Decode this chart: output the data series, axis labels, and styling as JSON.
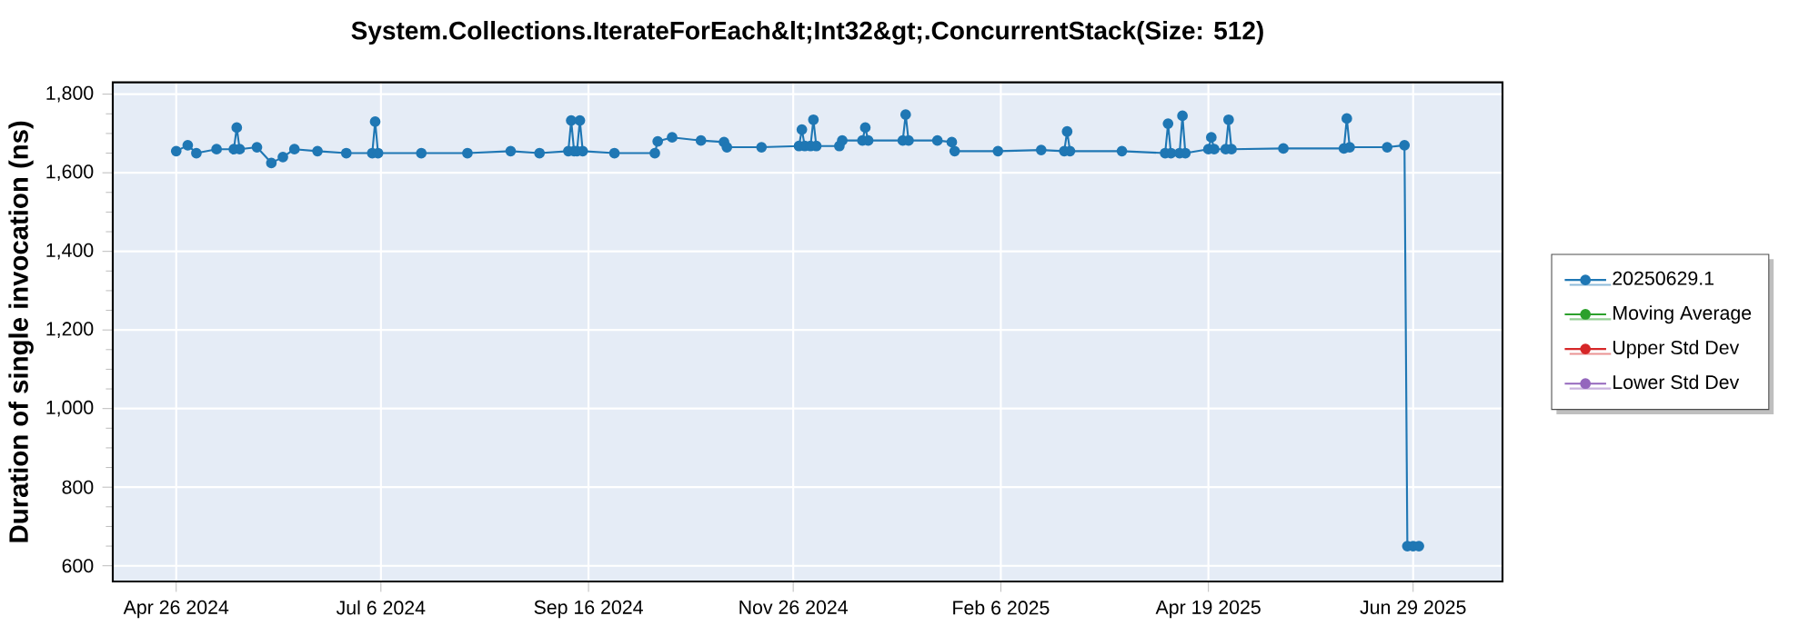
{
  "chart_data": {
    "type": "line",
    "title": "System.Collections.IterateForEach&lt;Int32&gt;.ConcurrentStack(Size: 512)",
    "ylabel": "Duration of single invocation (ns)",
    "xlim": [
      "2024-04-04",
      "2025-07-30"
    ],
    "ylim": [
      560,
      1830
    ],
    "xticks": [
      {
        "value": "2024-04-26",
        "label": "Apr 26 2024"
      },
      {
        "value": "2024-07-06",
        "label": "Jul 6 2024"
      },
      {
        "value": "2024-09-16",
        "label": "Sep 16 2024"
      },
      {
        "value": "2024-11-26",
        "label": "Nov 26 2024"
      },
      {
        "value": "2025-02-06",
        "label": "Feb 6 2025"
      },
      {
        "value": "2025-04-19",
        "label": "Apr 19 2025"
      },
      {
        "value": "2025-06-29",
        "label": "Jun 29 2025"
      }
    ],
    "yticks": [
      {
        "value": 600,
        "label": "600"
      },
      {
        "value": 800,
        "label": "800"
      },
      {
        "value": 1000,
        "label": "1,000"
      },
      {
        "value": 1200,
        "label": "1,200"
      },
      {
        "value": 1400,
        "label": "1,400"
      },
      {
        "value": 1600,
        "label": "1,600"
      },
      {
        "value": 1800,
        "label": "1,800"
      }
    ],
    "grid": true,
    "legend": "right",
    "marker": "circle",
    "series": [
      {
        "name": "20250629.1",
        "color": "#1f77b4",
        "x": [
          "2024-04-26",
          "2024-04-30",
          "2024-05-03",
          "2024-05-10",
          "2024-05-16",
          "2024-05-17",
          "2024-05-18",
          "2024-05-24",
          "2024-05-29",
          "2024-06-02",
          "2024-06-06",
          "2024-06-14",
          "2024-06-24",
          "2024-07-03",
          "2024-07-04",
          "2024-07-05",
          "2024-07-20",
          "2024-08-05",
          "2024-08-20",
          "2024-08-30",
          "2024-09-09",
          "2024-09-10",
          "2024-09-11",
          "2024-09-12",
          "2024-09-13",
          "2024-09-14",
          "2024-09-25",
          "2024-10-09",
          "2024-10-10",
          "2024-10-15",
          "2024-10-25",
          "2024-11-02",
          "2024-11-03",
          "2024-11-15",
          "2024-11-28",
          "2024-11-29",
          "2024-11-30",
          "2024-12-02",
          "2024-12-03",
          "2024-12-04",
          "2024-12-12",
          "2024-12-13",
          "2024-12-20",
          "2024-12-21",
          "2024-12-22",
          "2025-01-03",
          "2025-01-04",
          "2025-01-05",
          "2025-01-15",
          "2025-01-20",
          "2025-01-21",
          "2025-02-05",
          "2025-02-20",
          "2025-02-28",
          "2025-03-01",
          "2025-03-02",
          "2025-03-20",
          "2025-04-04",
          "2025-04-05",
          "2025-04-06",
          "2025-04-09",
          "2025-04-10",
          "2025-04-11",
          "2025-04-19",
          "2025-04-20",
          "2025-04-21",
          "2025-04-25",
          "2025-04-26",
          "2025-04-27",
          "2025-05-15",
          "2025-06-05",
          "2025-06-06",
          "2025-06-07",
          "2025-06-20",
          "2025-06-26",
          "2025-06-27",
          "2025-06-29",
          "2025-07-01"
        ],
        "values": [
          1655,
          1670,
          1650,
          1660,
          1660,
          1715,
          1660,
          1665,
          1625,
          1640,
          1660,
          1655,
          1650,
          1650,
          1730,
          1650,
          1650,
          1650,
          1655,
          1650,
          1655,
          1733,
          1655,
          1655,
          1733,
          1655,
          1650,
          1650,
          1680,
          1690,
          1682,
          1678,
          1665,
          1665,
          1668,
          1710,
          1668,
          1668,
          1735,
          1668,
          1668,
          1682,
          1682,
          1715,
          1682,
          1682,
          1748,
          1682,
          1682,
          1678,
          1655,
          1655,
          1658,
          1655,
          1705,
          1655,
          1655,
          1650,
          1725,
          1650,
          1650,
          1745,
          1650,
          1660,
          1690,
          1660,
          1660,
          1735,
          1660,
          1662,
          1662,
          1738,
          1665,
          1665,
          1670,
          650,
          650,
          650
        ]
      },
      {
        "name": "Moving Average",
        "color": "#2ca02c"
      },
      {
        "name": "Upper Std Dev",
        "color": "#d62728"
      },
      {
        "name": "Lower Std Dev",
        "color": "#9467bd"
      }
    ]
  }
}
